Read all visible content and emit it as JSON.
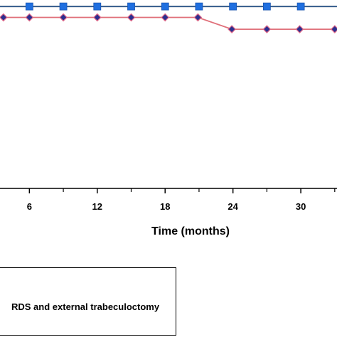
{
  "chart_data": {
    "type": "line",
    "xlabel": "Time (months)",
    "ylabel": "",
    "x_ticks": [
      6,
      12,
      18,
      24,
      30
    ],
    "xlim": [
      3.4,
      33.2
    ],
    "ylim": [
      0,
      1.02
    ],
    "grid": false,
    "legend_position": "bottom-left",
    "series": [
      {
        "name": "",
        "color": "#1f3a5f",
        "marker": "square",
        "marker_color": "#1f6fe0",
        "x": [
          3.2,
          6.0,
          9.0,
          12.0,
          15.0,
          18.0,
          21.0,
          24.0,
          27.0,
          30.0,
          33.5
        ],
        "y": [
          1.0,
          1.0,
          1.0,
          1.0,
          1.0,
          1.0,
          1.0,
          1.0,
          1.0,
          1.0,
          1.0
        ]
      },
      {
        "name": "RDS and external trabeculoctomy",
        "color": "#e0707a",
        "marker": "diamond",
        "marker_color": "#2b2f8f",
        "x": [
          3.2,
          3.7,
          6.0,
          9.0,
          12.0,
          15.0,
          18.0,
          20.9,
          23.9,
          27.0,
          29.9,
          33.0,
          33.5
        ],
        "y": [
          0.94,
          0.94,
          0.94,
          0.94,
          0.94,
          0.94,
          0.94,
          0.94,
          0.875,
          0.875,
          0.875,
          0.875,
          0.875
        ]
      }
    ]
  },
  "legend": {
    "label": "RDS and external trabeculoctomy"
  }
}
